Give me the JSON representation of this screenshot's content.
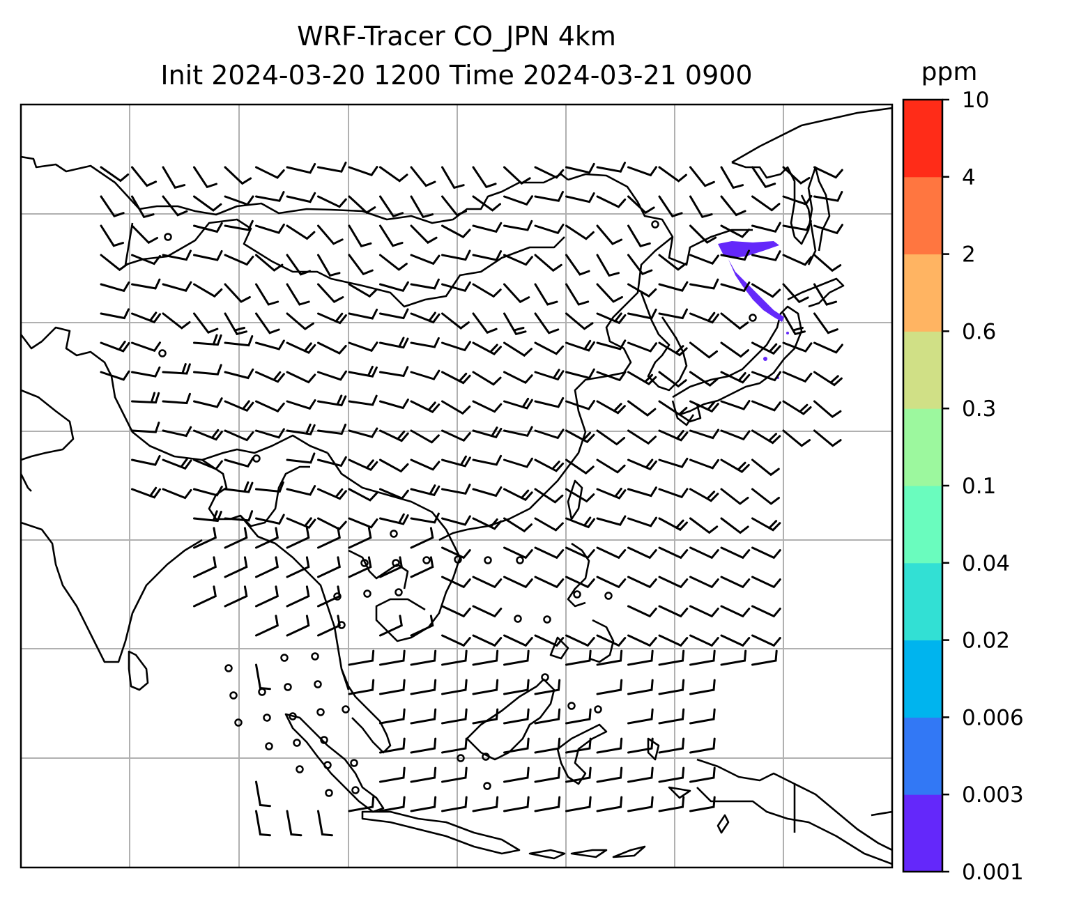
{
  "title": "WRF-Tracer CO_JPN 4km",
  "subtitle": "Init 2024-03-20 1200 Time 2024-03-21 0900",
  "colorbar": {
    "unit": "ppm",
    "levels": [
      "0.001",
      "0.003",
      "0.006",
      "0.02",
      "0.04",
      "0.1",
      "0.3",
      "0.6",
      "2",
      "4",
      "10"
    ],
    "colors": [
      "#6428fa",
      "#3278f5",
      "#00b4ee",
      "#32e0d4",
      "#6afcbe",
      "#9cf89e",
      "#d0e086",
      "#ffb462",
      "#ff7640",
      "#ff2c18"
    ]
  },
  "map": {
    "region": "East & Southeast Asia",
    "gridlines": true,
    "tracer_color": "#6428fa",
    "wind_barbs": true
  }
}
